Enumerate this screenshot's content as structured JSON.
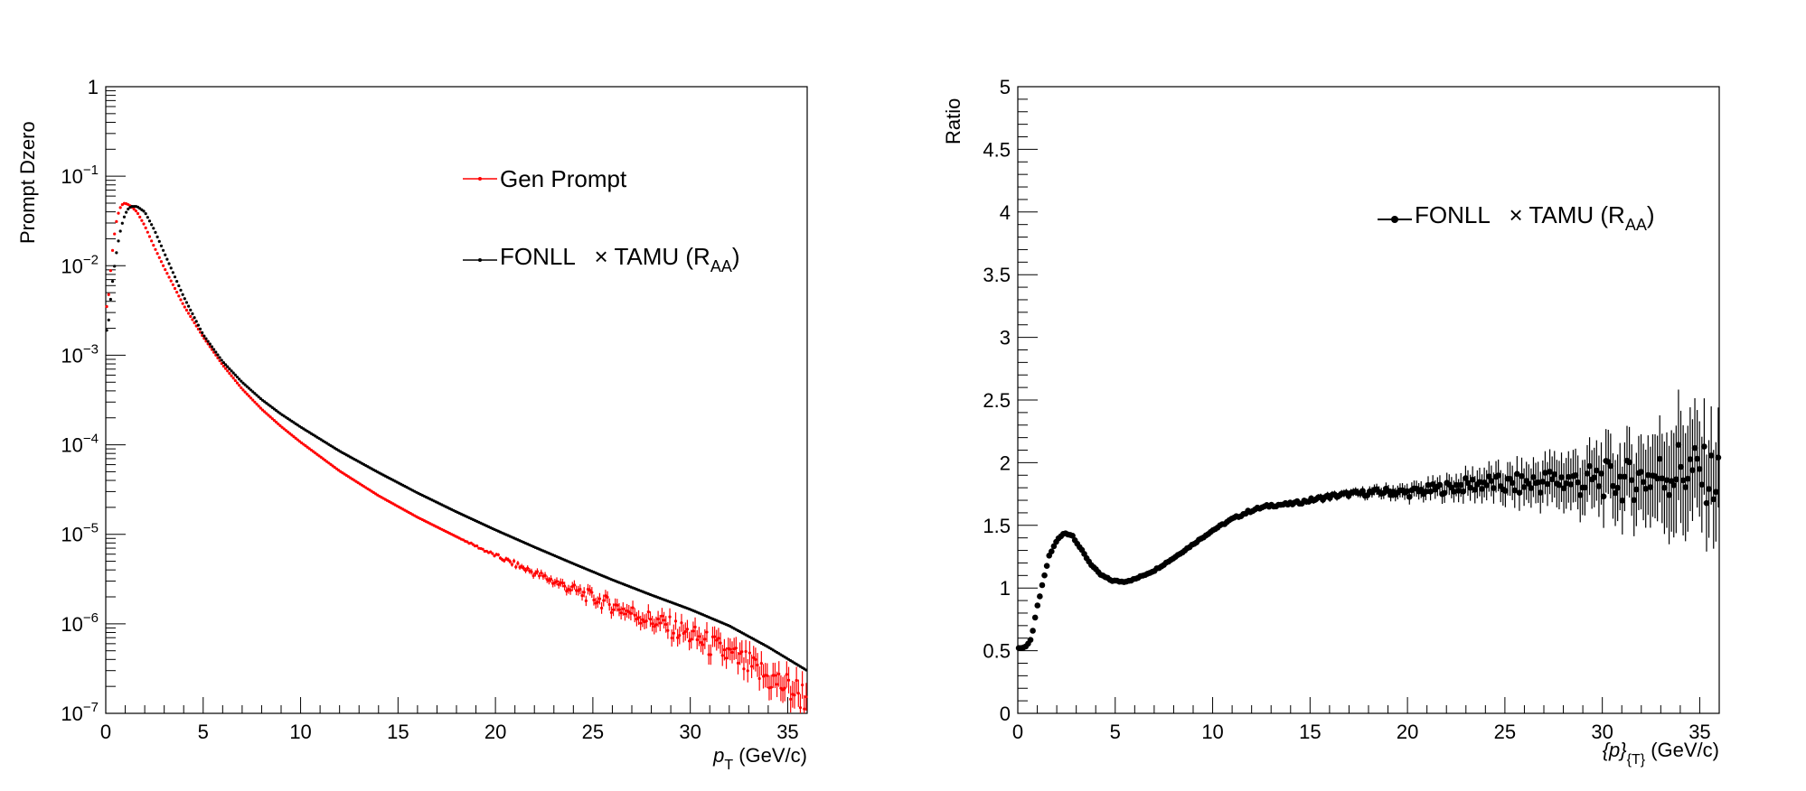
{
  "chart_data": [
    {
      "type": "scatter",
      "xlabel": {
        "main": "p",
        "sub": "T",
        "units": " (GeV/c)"
      },
      "ylabel": "Prompt Dzero",
      "xlim": [
        0,
        36
      ],
      "ylim": [
        1e-07,
        1
      ],
      "yscale": "log",
      "x_ticks": [
        "0",
        "5",
        "10",
        "15",
        "20",
        "25",
        "30",
        "35"
      ],
      "y_ticks": [
        {
          "base": "10",
          "exp": "−7"
        },
        {
          "base": "10",
          "exp": "−6"
        },
        {
          "base": "10",
          "exp": "−5"
        },
        {
          "base": "10",
          "exp": "−4"
        },
        {
          "base": "10",
          "exp": "−3"
        },
        {
          "base": "10",
          "exp": "−2"
        },
        {
          "base": "10",
          "exp": "−1"
        },
        {
          "base": "1",
          "exp": ""
        }
      ],
      "legend": {
        "placement": "top-right",
        "entries": [
          {
            "label": "Gen Prompt",
            "label_sub": "",
            "label_post": "",
            "color": "#ff0000"
          },
          {
            "label": "FONLL   × TAMU (R",
            "label_sub": "AA",
            "label_post": ")",
            "color": "#000000"
          }
        ]
      },
      "series": [
        {
          "name": "Gen Prompt",
          "color": "#ff0000",
          "x": [
            0.1,
            0.3,
            0.5,
            0.7,
            0.9,
            1.1,
            1.3,
            1.6,
            2,
            2.5,
            3,
            4,
            5,
            6,
            7,
            8,
            9,
            10,
            12,
            14,
            16,
            18,
            20,
            22,
            24,
            26,
            28,
            30,
            32,
            34,
            36
          ],
          "y": [
            0.0035,
            0.012,
            0.028,
            0.043,
            0.05,
            0.049,
            0.046,
            0.04,
            0.028,
            0.016,
            0.0095,
            0.0036,
            0.0016,
            0.00078,
            0.00042,
            0.00025,
            0.00016,
            0.000107,
            5.1e-05,
            2.7e-05,
            1.55e-05,
            9.4e-06,
            5.8e-06,
            3.7e-06,
            2.4e-06,
            1.6e-06,
            1.1e-06,
            7.5e-07,
            4.5e-07,
            2.5e-07,
            1.5e-07
          ]
        },
        {
          "name": "FONLL × TAMU (RAA)",
          "color": "#000000",
          "x": [
            0.1,
            0.3,
            0.5,
            0.7,
            0.9,
            1.1,
            1.3,
            1.6,
            2,
            2.5,
            3,
            4,
            5,
            6,
            7,
            8,
            9,
            10,
            12,
            14,
            16,
            18,
            20,
            22,
            24,
            26,
            28,
            30,
            32,
            34,
            36
          ],
          "y": [
            0.0019,
            0.0055,
            0.012,
            0.022,
            0.033,
            0.042,
            0.046,
            0.046,
            0.04,
            0.025,
            0.014,
            0.0045,
            0.0017,
            0.00085,
            0.0005,
            0.00032,
            0.00022,
            0.000158,
            8.5e-05,
            4.9e-05,
            2.9e-05,
            1.78e-05,
            1.12e-05,
            7.2e-06,
            4.7e-06,
            3.1e-06,
            2.1e-06,
            1.45e-06,
            9.5e-07,
            5.5e-07,
            3e-07
          ]
        }
      ]
    },
    {
      "type": "scatter",
      "xlabel": {
        "main": "{p}",
        "sub": "{T}",
        "units": " (GeV/c)"
      },
      "ylabel": "Ratio",
      "xlim": [
        0,
        36
      ],
      "ylim": [
        0,
        5
      ],
      "yscale": "linear",
      "x_ticks": [
        "0",
        "5",
        "10",
        "15",
        "20",
        "25",
        "30",
        "35"
      ],
      "y_ticks": [
        "0",
        "0.5",
        "1",
        "1.5",
        "2",
        "2.5",
        "3",
        "3.5",
        "4",
        "4.5",
        "5"
      ],
      "legend": {
        "placement": "top-right",
        "entries": [
          {
            "label": "FONLL   × TAMU (R",
            "label_sub": "AA",
            "label_post": ")",
            "color": "#000000"
          }
        ]
      },
      "series": [
        {
          "name": "FONLL × TAMU (RAA)",
          "color": "#000000",
          "x": [
            0.1,
            0.4,
            0.7,
            1.0,
            1.3,
            1.6,
            2.0,
            2.4,
            2.8,
            3.2,
            3.7,
            4.2,
            4.8,
            5.4,
            6,
            7,
            8,
            9,
            10,
            11,
            12,
            13,
            14,
            15,
            16,
            17,
            18,
            19,
            20,
            21,
            22,
            23,
            24,
            25,
            26,
            27,
            28,
            29,
            30,
            31,
            32,
            33,
            34,
            35,
            36
          ],
          "y": [
            0.52,
            0.53,
            0.6,
            0.85,
            1.05,
            1.25,
            1.38,
            1.44,
            1.42,
            1.32,
            1.2,
            1.11,
            1.06,
            1.05,
            1.07,
            1.14,
            1.24,
            1.35,
            1.46,
            1.55,
            1.62,
            1.66,
            1.67,
            1.7,
            1.73,
            1.75,
            1.76,
            1.77,
            1.76,
            1.78,
            1.8,
            1.82,
            1.84,
            1.82,
            1.83,
            1.85,
            1.86,
            1.84,
            1.87,
            1.85,
            1.88,
            1.9,
            1.95,
            1.92,
            1.85
          ],
          "err": [
            0.01,
            0.01,
            0.01,
            0.01,
            0.01,
            0.01,
            0.01,
            0.01,
            0.01,
            0.01,
            0.01,
            0.01,
            0.01,
            0.01,
            0.01,
            0.01,
            0.01,
            0.01,
            0.01,
            0.015,
            0.02,
            0.02,
            0.02,
            0.025,
            0.03,
            0.03,
            0.04,
            0.05,
            0.06,
            0.07,
            0.08,
            0.1,
            0.12,
            0.13,
            0.15,
            0.17,
            0.2,
            0.22,
            0.25,
            0.27,
            0.3,
            0.35,
            0.45,
            0.38,
            0.4
          ]
        }
      ]
    }
  ]
}
